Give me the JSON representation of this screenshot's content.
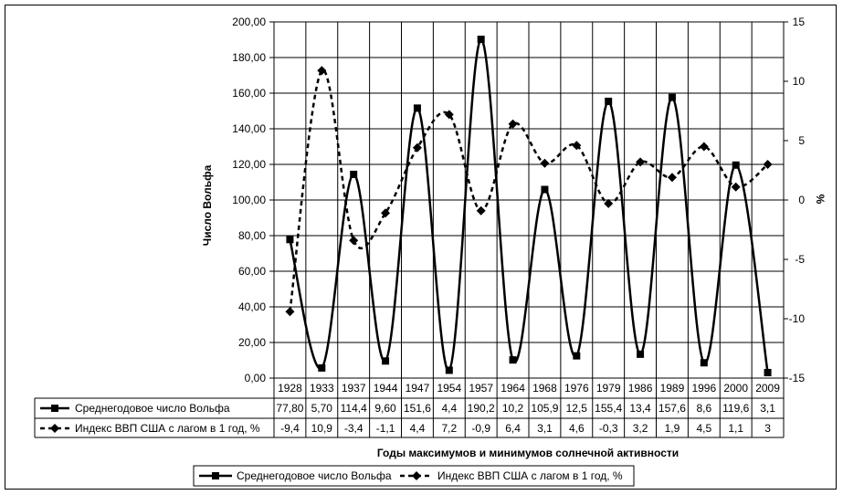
{
  "chart_data": {
    "type": "line",
    "categories": [
      "1928",
      "1933",
      "1937",
      "1944",
      "1947",
      "1954",
      "1957",
      "1964",
      "1968",
      "1976",
      "1979",
      "1986",
      "1989",
      "1996",
      "2000",
      "2009"
    ],
    "series": [
      {
        "name": "Среднегодовое число Вольфа",
        "axis": "left",
        "style": "solid",
        "marker": "square",
        "values": [
          77.8,
          5.7,
          114.4,
          9.6,
          151.6,
          4.4,
          190.2,
          10.2,
          105.9,
          12.5,
          155.4,
          13.4,
          157.6,
          8.6,
          119.6,
          3.1
        ],
        "labels": [
          "77,80",
          "5,70",
          "114,4",
          "9,60",
          "151,6",
          "4,4",
          "190,2",
          "10,2",
          "105,9",
          "12,5",
          "155,4",
          "13,4",
          "157,6",
          "8,6",
          "119,6",
          "3,1"
        ]
      },
      {
        "name": "Индекс ВВП США с лагом в 1 год, %",
        "axis": "right",
        "style": "dashed",
        "marker": "diamond",
        "values": [
          -9.4,
          10.9,
          -3.4,
          -1.1,
          4.4,
          7.2,
          -0.9,
          6.4,
          3.1,
          4.6,
          -0.3,
          3.2,
          1.9,
          4.5,
          1.1,
          3
        ],
        "labels": [
          "-9,4",
          "10,9",
          "-3,4",
          "-1,1",
          "4,4",
          "7,2",
          "-0,9",
          "6,4",
          "3,1",
          "4,6",
          "-0,3",
          "3,2",
          "1,9",
          "4,5",
          "1,1",
          "3"
        ]
      }
    ],
    "xlabel": "Годы максимумов и минимумов солнечной активности",
    "ylabel": "Число Вольфа",
    "y2label": "%",
    "ylim": [
      0,
      200
    ],
    "y2lim": [
      -15,
      15
    ],
    "yticks": [
      "0,00",
      "20,00",
      "40,00",
      "60,00",
      "80,00",
      "100,00",
      "120,00",
      "140,00",
      "160,00",
      "180,00",
      "200,00"
    ],
    "y2ticks": [
      "-15",
      "-10",
      "-5",
      "0",
      "5",
      "10",
      "15"
    ],
    "grid": true,
    "data_table": true,
    "legend_position": "bottom",
    "colors": {
      "line": "#000000",
      "background": "#ffffff",
      "grid": "#000000"
    }
  }
}
